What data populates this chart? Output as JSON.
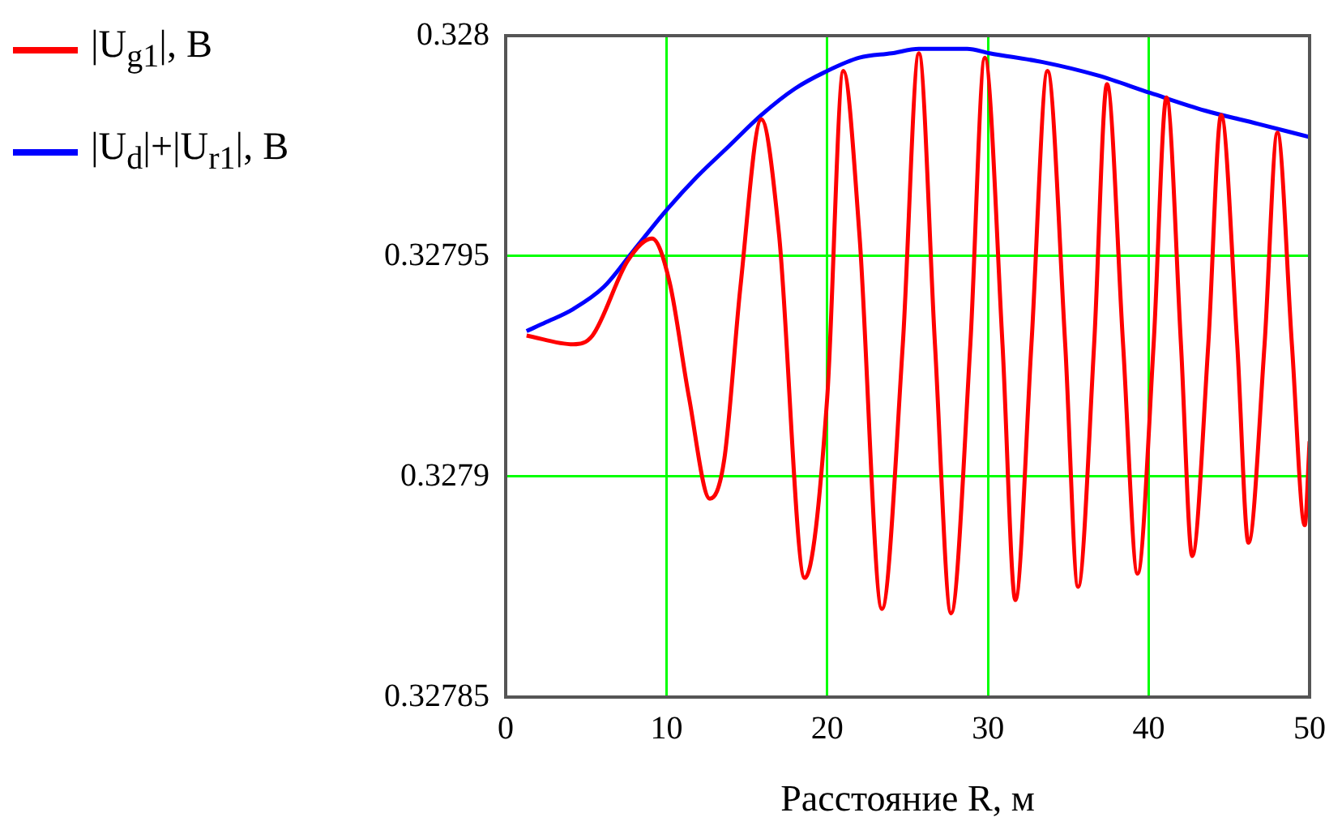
{
  "chart_data": {
    "type": "line",
    "xlabel": "Расстояние R, м",
    "legend": "top left",
    "grid": true,
    "xlim": [
      0,
      50
    ],
    "xticks": [
      0,
      10,
      20,
      30,
      40,
      50
    ],
    "ylim": [
      0.32785,
      0.328
    ],
    "yticks": [
      0.32785,
      0.3279,
      0.32795,
      0.328
    ],
    "series": [
      {
        "name": "|U$_{g1}$|, В",
        "color": "#ff0000",
        "line_style": "solid",
        "x": [
          1.3,
          4.2,
          5.4,
          7.6,
          9.1,
          10.2,
          11.4,
          12.7,
          13.6,
          14.6,
          15.9,
          17.0,
          18.6,
          20.0,
          21.0,
          22.0,
          23.4,
          24.7,
          25.7,
          26.7,
          27.7,
          28.9,
          29.8,
          30.9,
          31.7,
          32.7,
          33.7,
          34.8,
          35.6,
          36.6,
          37.4,
          38.4,
          39.3,
          40.3,
          41.1,
          42.0,
          42.7,
          43.7,
          44.5,
          45.5,
          46.2,
          47.2,
          48.0,
          48.9,
          49.7,
          50.0
        ],
        "values": [
          0.327932,
          0.32793,
          0.327932,
          0.327949,
          0.327954,
          0.327944,
          0.327918,
          0.327895,
          0.327904,
          0.327943,
          0.327981,
          0.327955,
          0.327877,
          0.327918,
          0.327992,
          0.327955,
          0.32787,
          0.32793,
          0.327996,
          0.32793,
          0.327869,
          0.32793,
          0.327995,
          0.32793,
          0.327872,
          0.32793,
          0.327992,
          0.32793,
          0.327875,
          0.32793,
          0.327989,
          0.32793,
          0.327878,
          0.32793,
          0.327986,
          0.32793,
          0.327882,
          0.32793,
          0.327982,
          0.32793,
          0.327885,
          0.32793,
          0.327978,
          0.32793,
          0.327889,
          0.327908
        ]
      },
      {
        "name": "|U$_{d}$|+|U$_{r1}$|, В",
        "color": "#0000ff",
        "line_style": "solid",
        "x": [
          1.3,
          2.5,
          4.2,
          6.1,
          7.9,
          9.9,
          11.9,
          13.9,
          15.9,
          18.0,
          20.0,
          22.0,
          24.0,
          25.7,
          28.7,
          30.1,
          33.4,
          36.8,
          40.1,
          43.5,
          46.8,
          50.0
        ],
        "values": [
          0.327933,
          0.327935,
          0.327938,
          0.327943,
          0.327951,
          0.32796,
          0.327968,
          0.327975,
          0.327982,
          0.327988,
          0.327992,
          0.327995,
          0.327996,
          0.327997,
          0.327997,
          0.327996,
          0.327994,
          0.327991,
          0.327987,
          0.327983,
          0.32798,
          0.327977
        ]
      }
    ]
  }
}
